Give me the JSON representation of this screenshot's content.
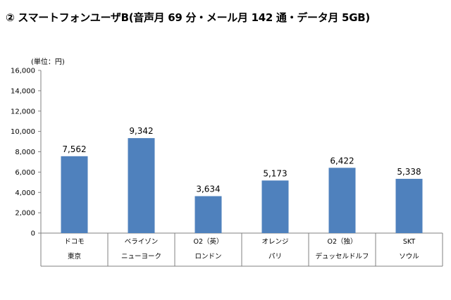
{
  "title": "② スマートフォンユーザB(音声月 69 分・メール月 142 通・データ月 5GB)",
  "chart_data": {
    "type": "bar",
    "unit_label": "(単位：円)",
    "ylim": [
      0,
      16000
    ],
    "yticks": [
      "0",
      "2,000",
      "4,000",
      "6,000",
      "8,000",
      "10,000",
      "12,000",
      "14,000",
      "16,000"
    ],
    "ytick_values": [
      0,
      2000,
      4000,
      6000,
      8000,
      10000,
      12000,
      14000,
      16000
    ],
    "categories": [
      {
        "carrier": "ドコモ",
        "city": "東京"
      },
      {
        "carrier": "ベライゾン",
        "city": "ニューヨーク"
      },
      {
        "carrier": "O2（英）",
        "city": "ロンドン"
      },
      {
        "carrier": "オレンジ",
        "city": "パリ"
      },
      {
        "carrier": "O2（独）",
        "city": "デュッセルドルフ"
      },
      {
        "carrier": "SKT",
        "city": "ソウル"
      }
    ],
    "values": [
      7562,
      9342,
      3634,
      5173,
      6422,
      5338
    ],
    "value_labels": [
      "7,562",
      "9,342",
      "3,634",
      "5,173",
      "6,422",
      "5,338"
    ],
    "bar_color": "#4f81bd",
    "grid": false,
    "legend": "none"
  }
}
